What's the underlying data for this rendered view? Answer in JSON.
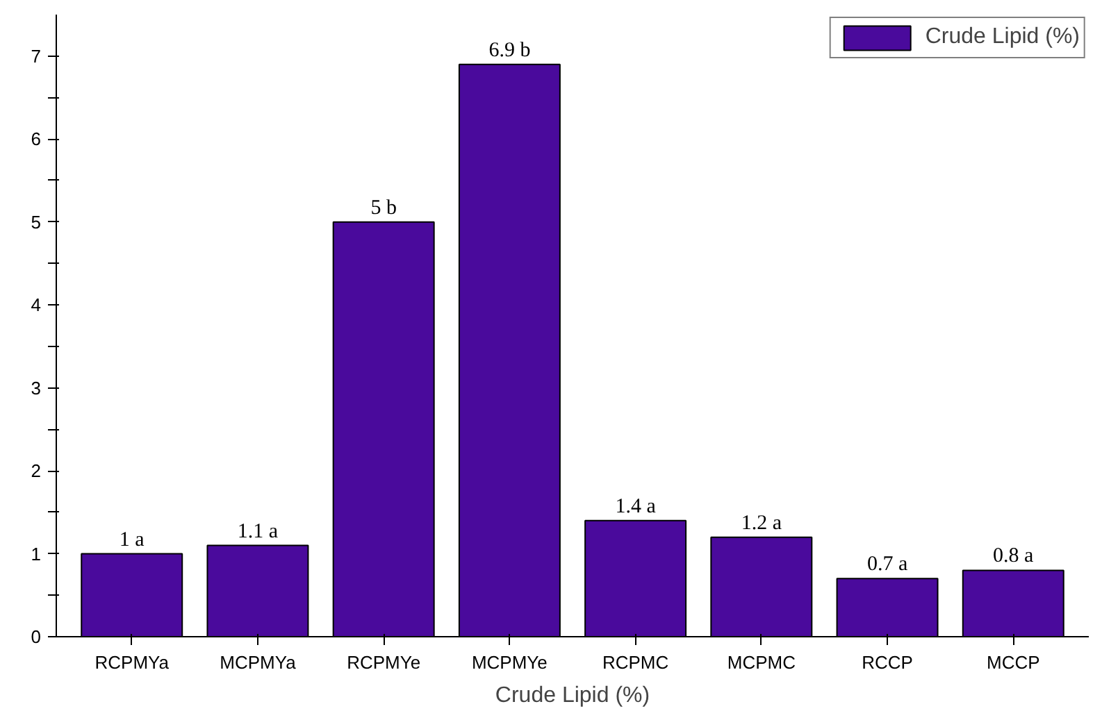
{
  "chart_data": {
    "type": "bar",
    "xlabel": "Crude Lipid (%)",
    "categories": [
      "RCPMYa",
      "MCPMYa",
      "RCPMYe",
      "MCPMYe",
      "RCPMC",
      "MCPMC",
      "RCCP",
      "MCCP"
    ],
    "series": [
      {
        "name": "Crude Lipid (%)",
        "color": "#4a0a9c",
        "values": [
          1,
          1.1,
          5,
          6.9,
          1.4,
          1.2,
          0.7,
          0.8
        ],
        "value_labels": [
          "1 a",
          "1.1 a",
          "5 b",
          "6.9 b",
          "1.4 a",
          "1.2 a",
          "0.7 a",
          "0.8 a"
        ]
      }
    ],
    "ylim": [
      0,
      7.5
    ],
    "yticks": [
      0,
      {
        "value": 0.5,
        "label": null
      },
      1,
      {
        "value": 1.5,
        "label": null
      },
      2,
      {
        "value": 2.5,
        "label": null
      },
      3,
      {
        "value": 3.5,
        "label": null
      },
      4,
      {
        "value": 4.5,
        "label": null
      },
      5,
      {
        "value": 5.5,
        "label": null
      },
      6,
      {
        "value": 6.5,
        "label": null
      },
      7
    ],
    "grid": false,
    "legend": "top right"
  }
}
